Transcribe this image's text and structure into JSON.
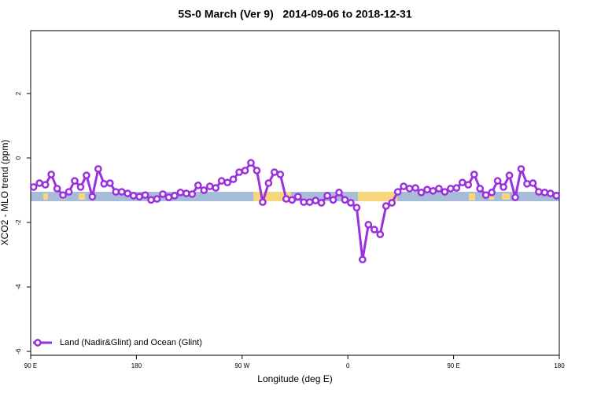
{
  "chart_data": {
    "type": "line",
    "title": "5S-0 March (Ver 9)   2014-09-06 to 2018-12-31",
    "x_label": "Longitude (deg E)",
    "y_label": "XCO2 - MLO trend (ppm)",
    "xlim": [
      90,
      540
    ],
    "ylim": [
      -6.12,
      3.95
    ],
    "xticks": [
      {
        "value": 90,
        "label": "90 E"
      },
      {
        "value": 180,
        "label": "180"
      },
      {
        "value": 270,
        "label": "90 W"
      },
      {
        "value": 360,
        "label": "0"
      },
      {
        "value": 450,
        "label": "90 E"
      },
      {
        "value": 540,
        "label": "180"
      }
    ],
    "yticks": [
      -6,
      -4,
      -2,
      0,
      2
    ],
    "legend": "lower left",
    "x": [
      92.5,
      97.5,
      102.5,
      107.5,
      112.5,
      117.5,
      122.5,
      127.5,
      132.5,
      137.5,
      142.5,
      147.5,
      152.5,
      157.5,
      162.5,
      167.5,
      172.5,
      177.5,
      182.5,
      187.5,
      192.5,
      197.5,
      202.5,
      207.5,
      212.5,
      217.5,
      222.5,
      227.5,
      232.5,
      237.5,
      242.5,
      247.5,
      252.5,
      257.5,
      262.5,
      267.5,
      272.5,
      277.5,
      282.5,
      287.5,
      292.5,
      297.5,
      302.5,
      307.5,
      312.5,
      317.5,
      322.5,
      327.5,
      332.5,
      337.5,
      342.5,
      347.5,
      352.5,
      357.5,
      362.5,
      367.5,
      372.5,
      377.5,
      382.5,
      387.5,
      392.5,
      397.5,
      402.5,
      407.5,
      412.5,
      417.5,
      422.5,
      427.5,
      432.5,
      437.5,
      442.5,
      447.5,
      452.5,
      457.5,
      462.5,
      467.5,
      472.5,
      477.5,
      482.5,
      487.5,
      492.5,
      497.5,
      502.5,
      507.5,
      512.5,
      517.5,
      522.5,
      527.5,
      532.5,
      537.5
    ],
    "series": [
      {
        "name": "Land (Nadir&Glint) and Ocean (Glint)",
        "color": "#9b30e0",
        "values": [
          -0.9,
          -0.78,
          -0.83,
          -0.51,
          -0.95,
          -1.15,
          -1.05,
          -0.71,
          -0.9,
          -0.54,
          -1.2,
          -0.34,
          -0.8,
          -0.78,
          -1.05,
          -1.05,
          -1.1,
          -1.17,
          -1.2,
          -1.15,
          -1.3,
          -1.27,
          -1.12,
          -1.22,
          -1.17,
          -1.07,
          -1.1,
          -1.12,
          -0.85,
          -1.0,
          -0.88,
          -0.93,
          -0.71,
          -0.76,
          -0.66,
          -0.44,
          -0.39,
          -0.15,
          -0.39,
          -1.37,
          -0.78,
          -0.44,
          -0.51,
          -1.27,
          -1.3,
          -1.2,
          -1.37,
          -1.37,
          -1.32,
          -1.39,
          -1.17,
          -1.3,
          -1.07,
          -1.3,
          -1.39,
          -1.54,
          -3.15,
          -2.07,
          -2.22,
          -2.37,
          -1.49,
          -1.39,
          -1.05,
          -0.88,
          -0.95,
          -0.93,
          -1.07,
          -0.98,
          -1.02,
          -0.95,
          -1.05,
          -0.95,
          -0.93,
          -0.76,
          -0.83,
          -0.51,
          -0.95,
          -1.15,
          -1.07,
          -0.71,
          -0.9,
          -0.54,
          -1.22,
          -0.34,
          -0.8,
          -0.78,
          -1.05,
          -1.07,
          -1.1,
          -1.17
        ]
      }
    ]
  }
}
